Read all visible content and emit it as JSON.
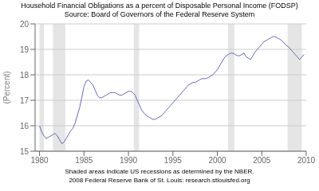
{
  "chart_data": {
    "type": "line",
    "title": "Household Financial Obligations as a percent of Disposable Personal Income (FODSP)",
    "subtitle": "Source: Board of Governors of the Federal Reserve System",
    "annotations": [
      "Shaded areas indicate US recessions as determined by the NBER.",
      "2008 Federal Reserve Bank of St. Louis: research.stlouisfed.org"
    ],
    "ylabel": "(Percent)",
    "xlim": [
      1979.5,
      2010
    ],
    "ylim": [
      15,
      20
    ],
    "yticks": [
      15,
      16,
      17,
      18,
      19,
      20
    ],
    "xticks": [
      1980,
      1985,
      1990,
      1995,
      2000,
      2005,
      2010
    ],
    "grid": true,
    "color": "#6666bb",
    "recessions": [
      [
        1980.0,
        1980.5
      ],
      [
        1981.5,
        1982.9
      ],
      [
        1990.6,
        1991.2
      ],
      [
        2001.2,
        2001.9
      ],
      [
        2007.9,
        2009.5
      ]
    ],
    "x": [
      1980.0,
      1980.25,
      1980.5,
      1980.75,
      1981.0,
      1981.25,
      1981.5,
      1981.75,
      1982.0,
      1982.25,
      1982.5,
      1982.75,
      1983.0,
      1983.25,
      1983.5,
      1983.75,
      1984.0,
      1984.25,
      1984.5,
      1984.75,
      1985.0,
      1985.25,
      1985.5,
      1985.75,
      1986.0,
      1986.25,
      1986.5,
      1986.75,
      1987.0,
      1987.25,
      1987.5,
      1987.75,
      1988.0,
      1988.25,
      1988.5,
      1988.75,
      1989.0,
      1989.25,
      1989.5,
      1989.75,
      1990.0,
      1990.25,
      1990.5,
      1990.75,
      1991.0,
      1991.25,
      1991.5,
      1991.75,
      1992.0,
      1992.25,
      1992.5,
      1992.75,
      1993.0,
      1993.25,
      1993.5,
      1993.75,
      1994.0,
      1994.25,
      1994.5,
      1994.75,
      1995.0,
      1995.25,
      1995.5,
      1995.75,
      1996.0,
      1996.25,
      1996.5,
      1996.75,
      1997.0,
      1997.25,
      1997.5,
      1997.75,
      1998.0,
      1998.25,
      1998.5,
      1998.75,
      1999.0,
      1999.25,
      1999.5,
      1999.75,
      2000.0,
      2000.25,
      2000.5,
      2000.75,
      2001.0,
      2001.25,
      2001.5,
      2001.75,
      2002.0,
      2002.25,
      2002.5,
      2002.75,
      2003.0,
      2003.25,
      2003.5,
      2003.75,
      2004.0,
      2004.25,
      2004.5,
      2004.75,
      2005.0,
      2005.25,
      2005.5,
      2005.75,
      2006.0,
      2006.25,
      2006.5,
      2006.75,
      2007.0,
      2007.25,
      2007.5,
      2007.75,
      2008.0,
      2008.25,
      2008.5,
      2008.75,
      2009.0,
      2009.25,
      2009.5,
      2009.75
    ],
    "values": [
      16.0,
      15.75,
      15.6,
      15.5,
      15.55,
      15.6,
      15.65,
      15.7,
      15.6,
      15.45,
      15.3,
      15.35,
      15.5,
      15.65,
      15.8,
      15.9,
      16.1,
      16.4,
      16.7,
      17.1,
      17.55,
      17.75,
      17.8,
      17.7,
      17.6,
      17.4,
      17.2,
      17.1,
      17.1,
      17.15,
      17.2,
      17.25,
      17.3,
      17.3,
      17.3,
      17.25,
      17.2,
      17.2,
      17.25,
      17.3,
      17.35,
      17.35,
      17.3,
      17.2,
      17.0,
      16.8,
      16.6,
      16.5,
      16.4,
      16.35,
      16.3,
      16.25,
      16.25,
      16.3,
      16.35,
      16.4,
      16.5,
      16.6,
      16.7,
      16.8,
      16.9,
      17.0,
      17.1,
      17.2,
      17.3,
      17.4,
      17.5,
      17.6,
      17.65,
      17.7,
      17.7,
      17.75,
      17.8,
      17.85,
      17.85,
      17.85,
      17.9,
      17.95,
      18.0,
      18.1,
      18.2,
      18.35,
      18.5,
      18.65,
      18.75,
      18.8,
      18.85,
      18.85,
      18.8,
      18.75,
      18.75,
      18.8,
      18.85,
      18.7,
      18.65,
      18.6,
      18.75,
      18.9,
      19.0,
      19.1,
      19.2,
      19.3,
      19.35,
      19.4,
      19.45,
      19.5,
      19.5,
      19.45,
      19.4,
      19.35,
      19.25,
      19.15,
      19.1,
      19.0,
      18.9,
      18.8,
      18.7,
      18.6,
      18.7,
      18.8
    ]
  }
}
